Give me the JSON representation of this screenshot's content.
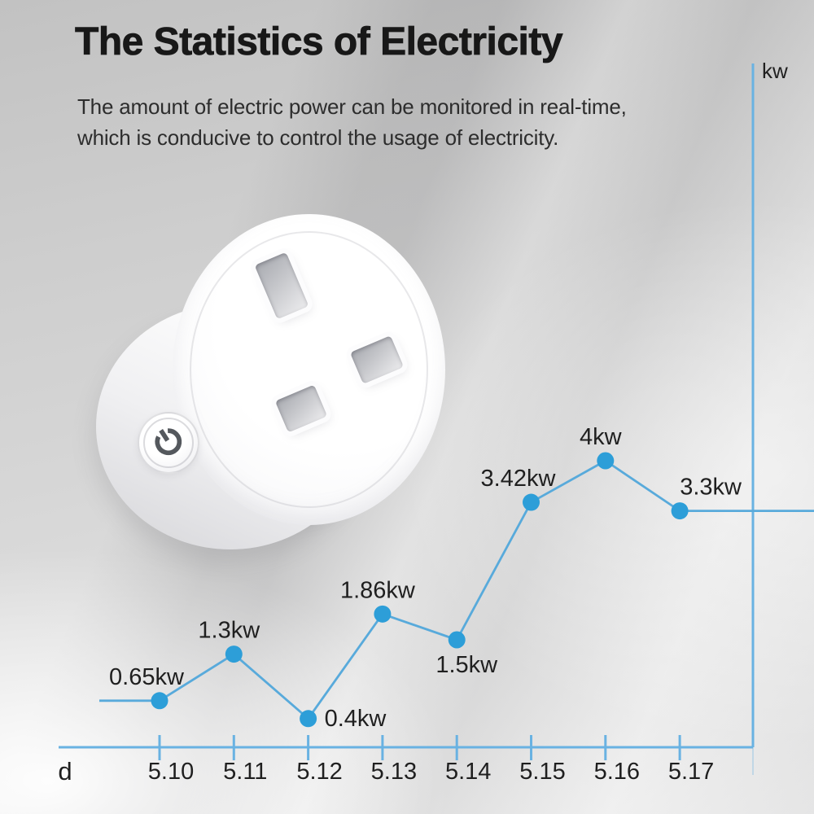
{
  "header": {
    "title": "The Statistics of Electricity",
    "subtitle_line1": "The amount of electric power can be monitored in real-time,",
    "subtitle_line2": "which is conducive to control the usage of electricity."
  },
  "product": {
    "description": "white round smart plug with UK three-pin socket and power button",
    "icons": [
      "power-icon"
    ]
  },
  "chart_data": {
    "type": "line",
    "title": "",
    "xlabel": "d",
    "ylabel": "kw",
    "x": [
      "5.10",
      "5.11",
      "5.12",
      "5.13",
      "5.14",
      "5.15",
      "5.16",
      "5.17"
    ],
    "values": [
      0.65,
      1.3,
      0.4,
      1.86,
      1.5,
      3.42,
      4.0,
      3.3
    ],
    "point_labels": [
      "0.65kw",
      "1.3kw",
      "0.4kw",
      "1.86kw",
      "1.5kw",
      "3.42kw",
      "4kw",
      "3.3kw"
    ],
    "label_positions": [
      "above-left",
      "above",
      "right",
      "above",
      "below",
      "above-left",
      "above",
      "above-right"
    ],
    "ylim": [
      0,
      4.8
    ],
    "grid": false,
    "legend": false,
    "lead_in": true,
    "lead_out": true,
    "line_color": "#58aadb",
    "point_color": "#2d9ed8",
    "axis_color": "#69b2e2",
    "label_color": "#1f1f1f"
  }
}
